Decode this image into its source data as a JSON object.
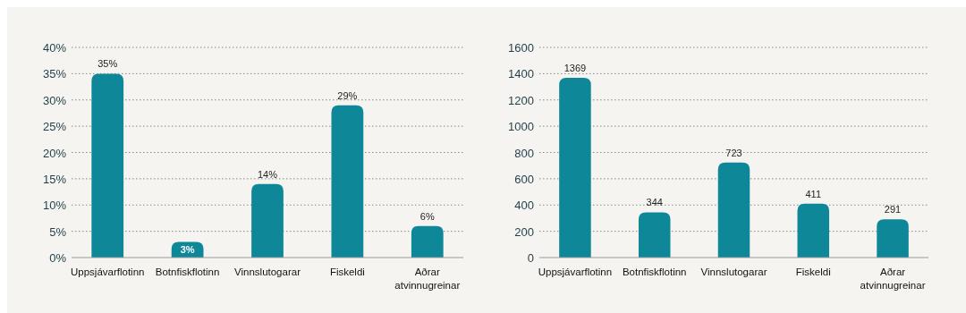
{
  "chart_data": [
    {
      "type": "bar",
      "categories": [
        "Uppsjávarflotinn",
        "Botnfiskflotinn",
        "Vinnslutogarar",
        "Fiskeldi",
        "Aðrar atvinnugreinar"
      ],
      "values": [
        35,
        3,
        14,
        29,
        6
      ],
      "value_labels": [
        "35%",
        "3%",
        "14%",
        "29%",
        "6%"
      ],
      "color": "#0e8798",
      "ylim": [
        0,
        40
      ],
      "yticks": [
        {
          "value": 0,
          "label": "0%"
        },
        {
          "value": 5,
          "label": "5%"
        },
        {
          "value": 10,
          "label": "10%"
        },
        {
          "value": 15,
          "label": "15%"
        },
        {
          "value": 20,
          "label": "20%"
        },
        {
          "value": 25,
          "label": "25%"
        },
        {
          "value": 30,
          "label": "30%"
        },
        {
          "value": 35,
          "label": "35%"
        },
        {
          "value": 40,
          "label": "40%"
        }
      ],
      "grid": "y"
    },
    {
      "type": "bar",
      "categories": [
        "Uppsjávarflotinn",
        "Botnfiskflotinn",
        "Vinnslutogarar",
        "Fiskeldi",
        "Aðrar atvinnugreinar"
      ],
      "values": [
        1369,
        344,
        723,
        411,
        291
      ],
      "data_labels": true,
      "color": "#0e8798",
      "ylim": [
        0,
        1600
      ],
      "yticks": [
        0,
        200,
        400,
        600,
        800,
        1000,
        1200,
        1400,
        1600
      ],
      "grid": "y"
    }
  ]
}
